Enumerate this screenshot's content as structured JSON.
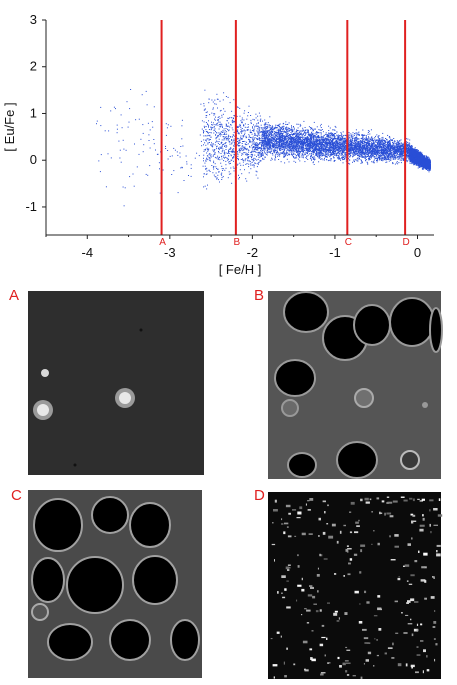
{
  "chart_data": {
    "type": "scatter",
    "xlabel": "[ Fe/H ]",
    "ylabel": "[ Eu/Fe ]",
    "xlim": [
      -4.5,
      0.2
    ],
    "ylim": [
      -1.6,
      3.0
    ],
    "xticks": [
      -4,
      -3,
      -2,
      -1,
      0
    ],
    "yticks": [
      -1,
      0,
      1,
      2,
      3
    ],
    "grid": false,
    "series": [
      {
        "color": "#2a4fd6",
        "points_description_only": false,
        "clusters": [
          {
            "x_range": [
              -3.9,
              -2.6
            ],
            "y_center": 0.3,
            "y_spread": 1.2,
            "density": "sparse"
          },
          {
            "x_range": [
              -2.6,
              -1.9
            ],
            "y_center": 0.4,
            "y_spread": 0.9,
            "density": "medium"
          },
          {
            "x_range": [
              -1.9,
              -0.1
            ],
            "y_center": 0.45,
            "y_spread": 0.35,
            "density": "dense"
          },
          {
            "x_range": [
              -0.1,
              0.15
            ],
            "y_center": 0.15,
            "y_spread": 0.15,
            "density": "dense"
          }
        ]
      }
    ],
    "markers": [
      {
        "label": "A",
        "x": -3.1
      },
      {
        "label": "B",
        "x": -2.2
      },
      {
        "label": "C",
        "x": -0.85
      },
      {
        "label": "D",
        "x": -0.15
      }
    ],
    "marker_color": "#e02020"
  },
  "panels": [
    {
      "letter": "A"
    },
    {
      "letter": "B"
    },
    {
      "letter": "C"
    },
    {
      "letter": "D"
    }
  ]
}
